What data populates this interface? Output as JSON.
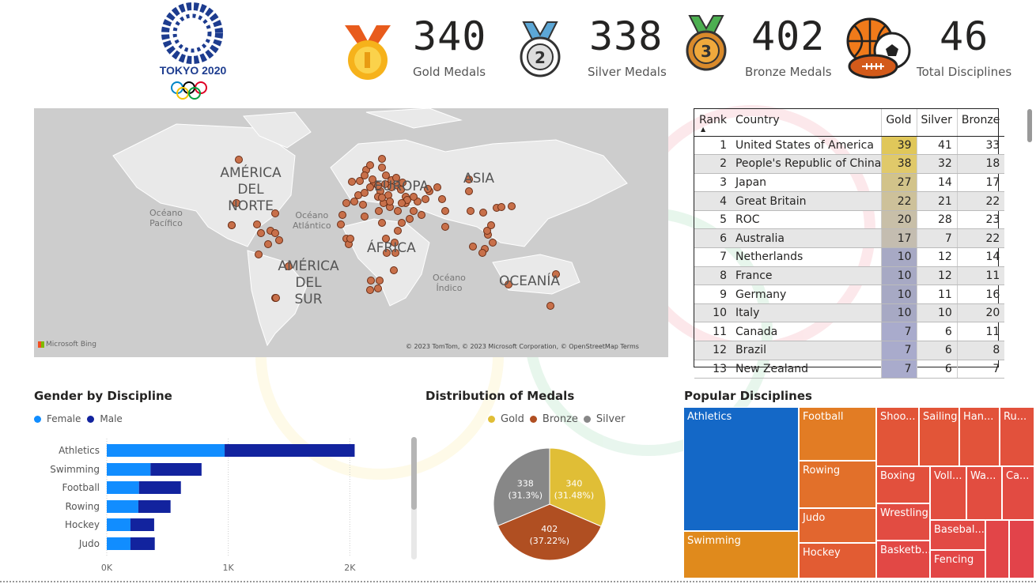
{
  "header": {
    "logo_text": "TOKYO 2020",
    "kpis": [
      {
        "value": "340",
        "label": "Gold Medals",
        "icon": "gold-medal-icon"
      },
      {
        "value": "338",
        "label": "Silver Medals",
        "icon": "silver-medal-icon"
      },
      {
        "value": "402",
        "label": "Bronze Medals",
        "icon": "bronze-medal-icon"
      },
      {
        "value": "46",
        "label": "Total Disciplines",
        "icon": "sports-balls-icon"
      }
    ]
  },
  "map": {
    "labels": {
      "na": [
        "AMÉRICA",
        "DEL",
        "NORTE"
      ],
      "sa": [
        "AMÉRICA",
        "DEL",
        "SUR"
      ],
      "europe": "EUROPA",
      "asia": "ASIA",
      "africa": "ÁFRICA",
      "oceania": "OCEANÍA",
      "pacific": [
        "Océano",
        "Pacífico"
      ],
      "atlantic": [
        "Océano",
        "Atlántico"
      ],
      "indian": [
        "Océano",
        "Índico"
      ]
    },
    "brand": "Microsoft Bing",
    "attribution": "© 2023 TomTom, © 2023 Microsoft Corporation, © OpenStreetMap Terms"
  },
  "table": {
    "headers": [
      "Rank",
      "Country",
      "Gold",
      "Silver",
      "Bronze"
    ],
    "rows": [
      [
        1,
        "United States of America",
        39,
        41,
        33
      ],
      [
        2,
        "People's Republic of China",
        38,
        32,
        18
      ],
      [
        3,
        "Japan",
        27,
        14,
        17
      ],
      [
        4,
        "Great Britain",
        22,
        21,
        22
      ],
      [
        5,
        "ROC",
        20,
        28,
        23
      ],
      [
        6,
        "Australia",
        17,
        7,
        22
      ],
      [
        7,
        "Netherlands",
        10,
        12,
        14
      ],
      [
        8,
        "France",
        10,
        12,
        11
      ],
      [
        9,
        "Germany",
        10,
        11,
        16
      ],
      [
        10,
        "Italy",
        10,
        10,
        20
      ],
      [
        11,
        "Canada",
        7,
        6,
        11
      ],
      [
        12,
        "Brazil",
        7,
        6,
        8
      ],
      [
        13,
        "New Zealand",
        7,
        6,
        7
      ]
    ]
  },
  "gender": {
    "title": "Gender by Discipline",
    "legend": [
      "Female",
      "Male"
    ]
  },
  "distribution": {
    "title": "Distribution of Medals",
    "legend": [
      "Gold",
      "Bronze",
      "Silver"
    ]
  },
  "popular": {
    "title": "Popular Disciplines",
    "tiles": [
      "Athletics",
      "Swimming",
      "Football",
      "Rowing",
      "Judo",
      "Hockey",
      "Shoo...",
      "Sailing",
      "Han...",
      "Ru...",
      "Boxing",
      "Voll...",
      "Wa...",
      "Ca...",
      "Wrestling",
      "Basebal...",
      "Basketb...",
      "Fencing"
    ]
  },
  "colors": {
    "female": "#118DFF",
    "male": "#12239E",
    "gold": "#E0BE36",
    "bronze": "#B04F22",
    "silver": "#878787"
  },
  "chart_data": [
    {
      "type": "bar",
      "title": "Gender by Discipline",
      "categories": [
        "Athletics",
        "Swimming",
        "Football",
        "Rowing",
        "Hockey",
        "Judo"
      ],
      "series": [
        {
          "name": "Female",
          "values": [
            970,
            360,
            265,
            260,
            195,
            195
          ]
        },
        {
          "name": "Male",
          "values": [
            1070,
            420,
            345,
            265,
            195,
            200
          ]
        }
      ],
      "xlim": [
        0,
        2100
      ],
      "xticks": [
        "0K",
        "1K",
        "2K"
      ],
      "stacked": true,
      "orientation": "horizontal"
    },
    {
      "type": "pie",
      "title": "Distribution of Medals",
      "slices": [
        {
          "name": "Gold",
          "value": 340,
          "label": [
            "340",
            "(31.48%)"
          ]
        },
        {
          "name": "Bronze",
          "value": 402,
          "label": [
            "402",
            "(37.22%)"
          ]
        },
        {
          "name": "Silver",
          "value": 338,
          "label": [
            "338",
            "(31.3%)"
          ]
        }
      ]
    }
  ]
}
